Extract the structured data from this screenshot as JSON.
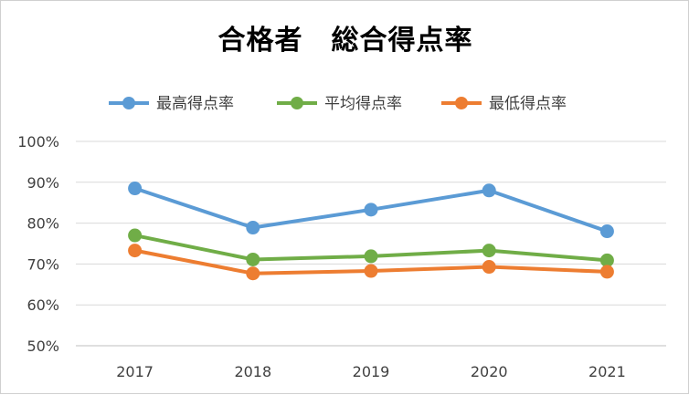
{
  "chart_data": {
    "type": "line",
    "title": "合格者　総合得点率",
    "categories": [
      "2017",
      "2018",
      "2019",
      "2020",
      "2021"
    ],
    "series": [
      {
        "name": "最高得点率",
        "color": "#5B9BD5",
        "values": [
          88.5,
          78.9,
          83.3,
          88.0,
          78.0
        ]
      },
      {
        "name": "平均得点率",
        "color": "#70AD47",
        "values": [
          77.0,
          71.1,
          71.9,
          73.3,
          70.9
        ]
      },
      {
        "name": "最低得点率",
        "color": "#ED7D31",
        "values": [
          73.3,
          67.7,
          68.3,
          69.3,
          68.1
        ]
      }
    ],
    "ylim": [
      50,
      100
    ],
    "yticks": [
      "50%",
      "60%",
      "70%",
      "80%",
      "90%",
      "100%"
    ],
    "grid": true,
    "legend_position": "top"
  }
}
